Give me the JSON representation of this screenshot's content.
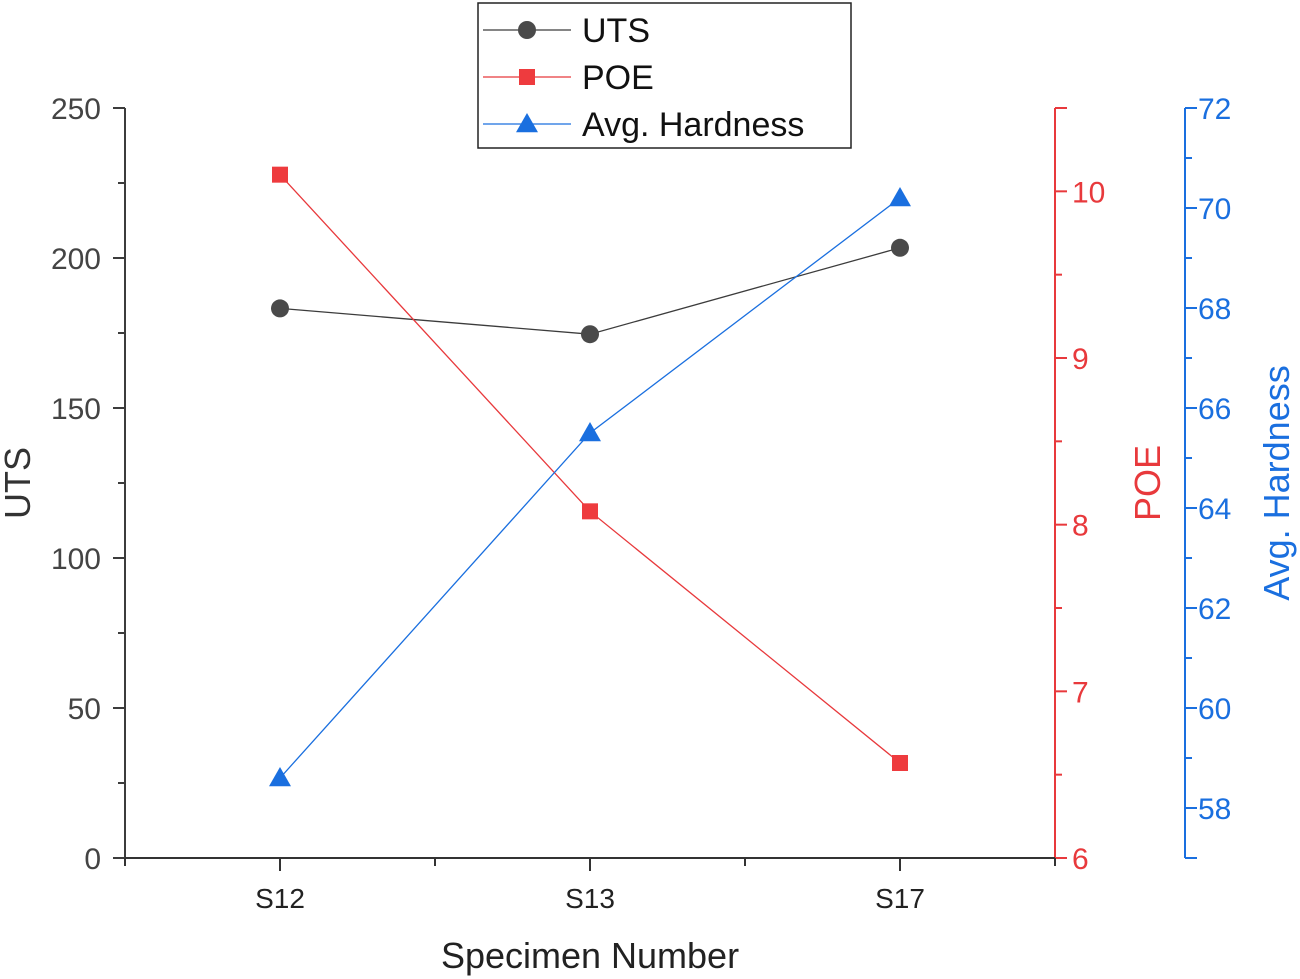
{
  "chart_data": {
    "type": "line",
    "title": "",
    "xlabel": "Specimen Number",
    "categories": [
      "S12",
      "S13",
      "S17"
    ],
    "axes": {
      "uts": {
        "label": "UTS",
        "range": [
          0,
          250
        ],
        "ticks": [
          "0",
          "50",
          "100",
          "150",
          "200",
          "250"
        ],
        "color": "#3c3c3c"
      },
      "poe": {
        "label": "POE",
        "range": [
          6,
          10.5
        ],
        "ticks": [
          "6",
          "7",
          "8",
          "9",
          "10"
        ],
        "color": "#e8393c"
      },
      "hardness": {
        "label": "Avg. Hardness",
        "range": [
          57,
          72
        ],
        "ticks": [
          "58",
          "60",
          "62",
          "64",
          "66",
          "68",
          "70",
          "72"
        ],
        "color": "#1a6fdf"
      }
    },
    "series": [
      {
        "name": "UTS",
        "axis": "uts",
        "marker": "circle",
        "color": "#3c3c3c",
        "markerColor": "#4a4a4a",
        "values": [
          183.2,
          174.6,
          203.4
        ]
      },
      {
        "name": "POE",
        "axis": "poe",
        "marker": "square",
        "color": "#e8393c",
        "markerColor": "#ee3b3e",
        "values": [
          10.1,
          8.08,
          6.57
        ]
      },
      {
        "name": "Avg. Hardness",
        "axis": "hardness",
        "marker": "triangle",
        "color": "#1a6fdf",
        "markerColor": "#1a6fdf",
        "values": [
          58.6,
          65.5,
          70.2
        ]
      }
    ],
    "legend": {
      "position": "top-center",
      "entries": [
        "UTS",
        "POE",
        "Avg. Hardness"
      ]
    }
  }
}
